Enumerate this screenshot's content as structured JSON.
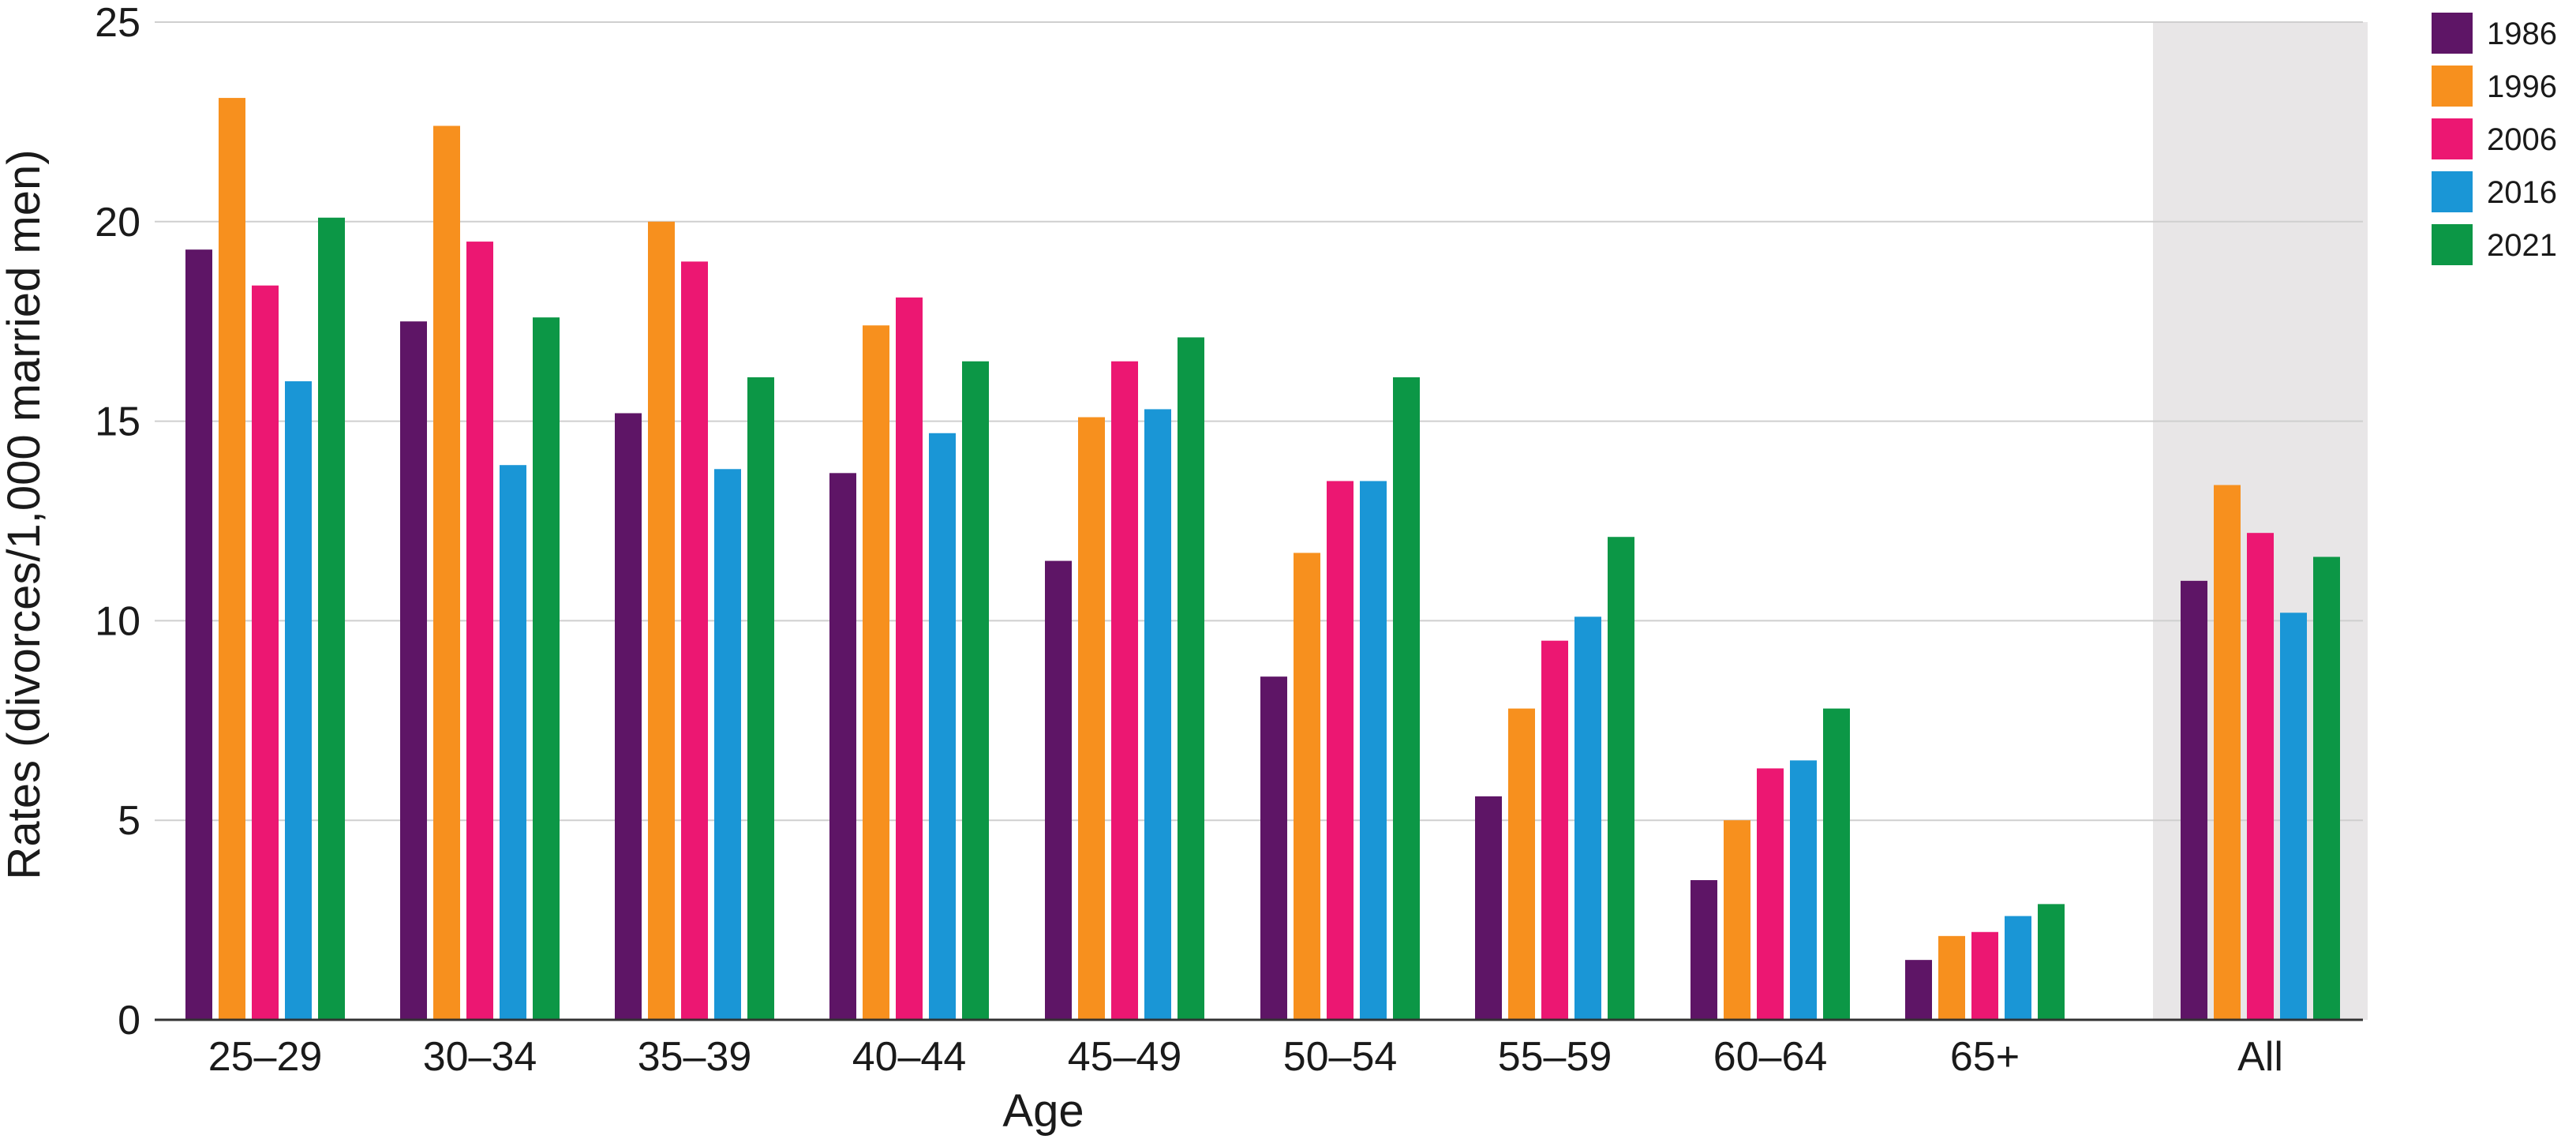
{
  "chart_data": {
    "type": "bar",
    "title": "",
    "xlabel": "Age",
    "ylabel": "Rates (divorces/1,000 married men)",
    "ylim": [
      0,
      25
    ],
    "yticks": [
      0,
      5,
      10,
      15,
      20,
      25
    ],
    "grid": true,
    "legend_position": "top-right",
    "highlighted_category": "All",
    "categories": [
      "25–29",
      "30–34",
      "35–39",
      "40–44",
      "45–49",
      "50–54",
      "55–59",
      "60–64",
      "65+",
      "All"
    ],
    "series": [
      {
        "name": "1986",
        "color": "#5e1566",
        "values": [
          19.3,
          17.5,
          15.2,
          13.7,
          11.5,
          8.6,
          5.6,
          3.5,
          1.5,
          11.0
        ]
      },
      {
        "name": "1996",
        "color": "#f7901e",
        "values": [
          23.1,
          22.4,
          20.0,
          17.4,
          15.1,
          11.7,
          7.8,
          5.0,
          2.1,
          13.4
        ]
      },
      {
        "name": "2006",
        "color": "#ec1772",
        "values": [
          18.4,
          19.5,
          19.0,
          18.1,
          16.5,
          13.5,
          9.5,
          6.3,
          2.2,
          12.2
        ]
      },
      {
        "name": "2016",
        "color": "#1a96d6",
        "values": [
          16.0,
          13.9,
          13.8,
          14.7,
          15.3,
          13.5,
          10.1,
          6.5,
          2.6,
          10.2
        ]
      },
      {
        "name": "2021",
        "color": "#0c9746",
        "values": [
          20.1,
          17.6,
          16.1,
          16.5,
          17.1,
          16.1,
          12.1,
          7.8,
          2.9,
          11.6
        ]
      }
    ],
    "highlight_color": "#e8e6e7"
  }
}
